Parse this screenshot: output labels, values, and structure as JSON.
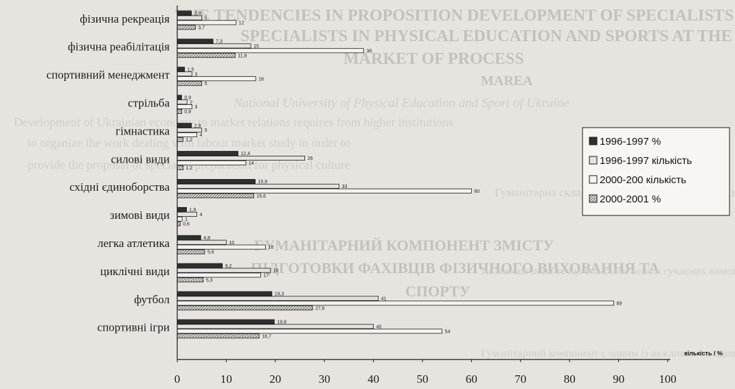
{
  "chart_data": {
    "type": "bar",
    "orientation": "horizontal",
    "categories": [
      "фізична рекреація",
      "фізична реабілітація",
      "спортивний менеджмент",
      "стрільба",
      "гімнастика",
      "силові види",
      "східні єдиноборства",
      "зимові види",
      "легка атлетика",
      "циклічні види",
      "футбол",
      "спортивні ігри"
    ],
    "series": [
      {
        "name": "1996-1997 %",
        "fill": "solid",
        "values": [
          2.9,
          7.3,
          1.5,
          0.9,
          2.9,
          12.4,
          15.9,
          1.9,
          4.8,
          9.2,
          19.3,
          19.8
        ]
      },
      {
        "name": "1996-1997 кількість",
        "fill": "light",
        "values": [
          5,
          15,
          3,
          2,
          5,
          26,
          33,
          4,
          10,
          19,
          41,
          40
        ]
      },
      {
        "name": "2000-200 кількість",
        "fill": "open",
        "values": [
          12,
          38,
          16,
          3,
          4,
          14,
          60,
          1,
          18,
          17,
          89,
          54
        ]
      },
      {
        "name": "2000-2001 %",
        "fill": "hatch",
        "values": [
          3.7,
          11.8,
          5,
          0.9,
          1.2,
          1.2,
          15.6,
          0.6,
          5.6,
          5.3,
          27.6,
          16.7
        ]
      }
    ],
    "data_labels": [
      [
        "2,9",
        "5",
        "12",
        "3,7"
      ],
      [
        "7,3",
        "15",
        "38",
        "11,8"
      ],
      [
        "1,5",
        "3",
        "16",
        "5"
      ],
      [
        "0,9",
        "2",
        "3",
        "0,9"
      ],
      [
        "2,9",
        "5",
        "4",
        "1,2"
      ],
      [
        "12,4",
        "26",
        "14",
        "1,2"
      ],
      [
        "15,9",
        "33",
        "60",
        "15,6"
      ],
      [
        "1,9",
        "4",
        "1",
        "0,6"
      ],
      [
        "4,8",
        "10",
        "18",
        "5,6"
      ],
      [
        "9,2",
        "19",
        "17",
        "5,3"
      ],
      [
        "19,3",
        "41",
        "89",
        "27,6"
      ],
      [
        "19,8",
        "40",
        "54",
        "16,7"
      ]
    ],
    "xticks": [
      "0",
      "10",
      "20",
      "30",
      "40",
      "50",
      "60",
      "70",
      "80",
      "90",
      "100"
    ],
    "xlim": [
      0,
      100
    ],
    "xlabel": "кількість / %",
    "legend_position": "right",
    "grid": false,
    "colors": {
      "solid": "#2f2f2f",
      "light": "#e4e2de",
      "open": "#f4f3f0",
      "hatch": "#c9c7c3",
      "outline": "#1a1a1a"
    }
  },
  "background_text": {
    "heading_lines": [
      "THE TENDENCIES IN PROPOSITION DEVELOPMENT OF SPECIALISTS",
      "SPECIALISTS IN PHYSICAL EDUCATION AND SPORTS AT THE",
      "MARKET OF PROCESS",
      "MAREA",
      "National University of Physical Education and Sport of Ukraine",
      "ГУМАНІТАРНИЙ КОМПОНЕНТ ЗМІСТУ",
      "ПІДГОТОВКИ ФАХІВЦІВ ФІЗИЧНОГО ВИХОВАННЯ ТА",
      "СПОРТУ"
    ],
    "body_lines": [
      "Development of Ukrainian economy to market relations requires from higher institutions",
      "to organize the work dealing with labour market study in order to",
      "provide the proposal of specialist preparation for physical culture",
      "Гуманітарна складова підготовки фахівців галузі",
      "Незважаючи на те що в системі освіти сучасних вимог, є її ядро",
      "Гуманітарний компонент є одним із важливих складових вищої освіти"
    ]
  }
}
